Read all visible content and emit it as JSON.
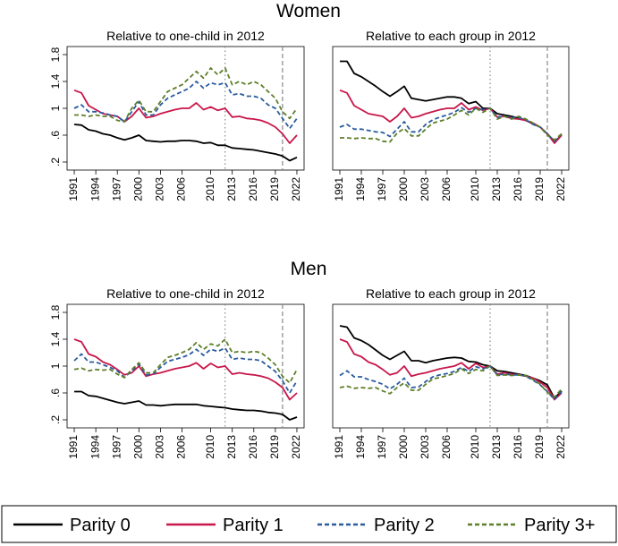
{
  "headings": [
    "Women",
    "Men"
  ],
  "chart_data": [
    {
      "type": "line",
      "title": "Relative to one-child in 2012",
      "x": [
        1991,
        1992,
        1993,
        1994,
        1995,
        1996,
        1997,
        1998,
        1999,
        2000,
        2001,
        2002,
        2003,
        2004,
        2005,
        2006,
        2007,
        2008,
        2009,
        2010,
        2011,
        2012,
        2013,
        2014,
        2015,
        2016,
        2017,
        2018,
        2019,
        2020,
        2021,
        2022
      ],
      "xlim": [
        1990,
        2023
      ],
      "xticks": [
        1991,
        1994,
        1997,
        2000,
        2003,
        2006,
        2010,
        2013,
        2016,
        2019,
        2022
      ],
      "ylim": [
        0.08,
        1.92
      ],
      "yticks": [
        {
          "value": 0.2,
          "label": ".2"
        },
        {
          "value": 0.6,
          "label": ".6"
        },
        1,
        {
          "value": 1.4,
          "label": "1.4"
        },
        {
          "value": 1.8,
          "label": "1.8"
        }
      ],
      "vlines": [
        {
          "x": 2012,
          "style": "dotted"
        },
        {
          "x": 2020,
          "style": "dashed"
        }
      ],
      "series": [
        {
          "name": "Parity 0",
          "color": "#000000",
          "dash": "solid",
          "values": [
            0.76,
            0.75,
            0.68,
            0.66,
            0.62,
            0.6,
            0.56,
            0.53,
            0.56,
            0.6,
            0.52,
            0.51,
            0.5,
            0.51,
            0.51,
            0.52,
            0.52,
            0.51,
            0.48,
            0.49,
            0.45,
            0.45,
            0.41,
            0.4,
            0.39,
            0.38,
            0.36,
            0.34,
            0.32,
            0.29,
            0.22,
            0.27
          ]
        },
        {
          "name": "Parity 1",
          "color": "#c8174a",
          "dash": "solid",
          "values": [
            1.27,
            1.23,
            1.04,
            0.98,
            0.92,
            0.9,
            0.88,
            0.8,
            0.88,
            1.0,
            0.86,
            0.88,
            0.92,
            0.95,
            0.98,
            1.0,
            1.0,
            1.08,
            0.98,
            1.02,
            0.97,
            1.0,
            0.87,
            0.88,
            0.85,
            0.84,
            0.82,
            0.78,
            0.72,
            0.62,
            0.48,
            0.6
          ]
        },
        {
          "name": "Parity 2",
          "color": "#2a5c9e",
          "dash": "dashed",
          "values": [
            1.0,
            1.05,
            0.95,
            0.95,
            0.93,
            0.9,
            0.88,
            0.8,
            0.95,
            1.1,
            0.9,
            0.9,
            1.05,
            1.15,
            1.2,
            1.25,
            1.3,
            1.4,
            1.3,
            1.38,
            1.35,
            1.38,
            1.2,
            1.22,
            1.18,
            1.18,
            1.15,
            1.05,
            1.0,
            0.85,
            0.7,
            0.85
          ]
        },
        {
          "name": "Parity 3+",
          "color": "#5e7f2a",
          "dash": "dashed",
          "values": [
            0.9,
            0.9,
            0.88,
            0.9,
            0.88,
            0.88,
            0.82,
            0.8,
            1.0,
            1.12,
            0.95,
            0.95,
            1.1,
            1.25,
            1.3,
            1.35,
            1.45,
            1.55,
            1.45,
            1.6,
            1.5,
            1.6,
            1.35,
            1.4,
            1.35,
            1.4,
            1.35,
            1.25,
            1.15,
            0.95,
            0.85,
            1.0
          ]
        }
      ]
    },
    {
      "type": "line",
      "title": "Relative to each group in 2012",
      "x": [
        1991,
        1992,
        1993,
        1994,
        1995,
        1996,
        1997,
        1998,
        1999,
        2000,
        2001,
        2002,
        2003,
        2004,
        2005,
        2006,
        2007,
        2008,
        2009,
        2010,
        2011,
        2012,
        2013,
        2014,
        2015,
        2016,
        2017,
        2018,
        2019,
        2020,
        2021,
        2022
      ],
      "xlim": [
        1990,
        2023
      ],
      "xticks": [
        1991,
        1994,
        1997,
        2000,
        2003,
        2006,
        2010,
        2013,
        2016,
        2019,
        2022
      ],
      "ylim": [
        0.08,
        1.92
      ],
      "vlines": [
        {
          "x": 2012,
          "style": "dotted"
        },
        {
          "x": 2020,
          "style": "dashed"
        }
      ],
      "series": [
        {
          "name": "Parity 0",
          "color": "#000000",
          "dash": "solid",
          "values": [
            1.7,
            1.7,
            1.52,
            1.47,
            1.4,
            1.33,
            1.25,
            1.18,
            1.25,
            1.33,
            1.15,
            1.13,
            1.11,
            1.13,
            1.15,
            1.17,
            1.17,
            1.15,
            1.07,
            1.1,
            1.0,
            1.0,
            0.92,
            0.9,
            0.88,
            0.85,
            0.82,
            0.77,
            0.72,
            0.62,
            0.5,
            0.6
          ]
        },
        {
          "name": "Parity 1",
          "color": "#c8174a",
          "dash": "solid",
          "values": [
            1.27,
            1.23,
            1.04,
            0.98,
            0.92,
            0.9,
            0.88,
            0.8,
            0.88,
            1.0,
            0.86,
            0.88,
            0.92,
            0.95,
            0.98,
            1.0,
            1.0,
            1.08,
            0.98,
            1.02,
            0.97,
            1.0,
            0.87,
            0.88,
            0.85,
            0.84,
            0.82,
            0.78,
            0.72,
            0.62,
            0.48,
            0.6
          ]
        },
        {
          "name": "Parity 2",
          "color": "#2a5c9e",
          "dash": "dashed",
          "values": [
            0.72,
            0.76,
            0.69,
            0.69,
            0.67,
            0.65,
            0.64,
            0.58,
            0.69,
            0.8,
            0.65,
            0.65,
            0.76,
            0.83,
            0.87,
            0.9,
            0.94,
            1.01,
            0.94,
            1.0,
            0.98,
            1.0,
            0.87,
            0.88,
            0.86,
            0.86,
            0.83,
            0.76,
            0.72,
            0.62,
            0.51,
            0.62
          ]
        },
        {
          "name": "Parity 3+",
          "color": "#5e7f2a",
          "dash": "dashed",
          "values": [
            0.56,
            0.56,
            0.55,
            0.56,
            0.55,
            0.55,
            0.51,
            0.5,
            0.63,
            0.7,
            0.59,
            0.59,
            0.69,
            0.78,
            0.81,
            0.84,
            0.9,
            0.97,
            0.9,
            1.0,
            0.94,
            1.0,
            0.84,
            0.88,
            0.84,
            0.88,
            0.84,
            0.78,
            0.72,
            0.6,
            0.53,
            0.62
          ]
        }
      ]
    },
    {
      "type": "line",
      "title": "Relative to one-child in 2012",
      "x": [
        1991,
        1992,
        1993,
        1994,
        1995,
        1996,
        1997,
        1998,
        1999,
        2000,
        2001,
        2002,
        2003,
        2004,
        2005,
        2006,
        2007,
        2008,
        2009,
        2010,
        2011,
        2012,
        2013,
        2014,
        2015,
        2016,
        2017,
        2018,
        2019,
        2020,
        2021,
        2022
      ],
      "xlim": [
        1990,
        2023
      ],
      "xticks": [
        1991,
        1994,
        1997,
        2000,
        2003,
        2006,
        2010,
        2013,
        2016,
        2019,
        2022
      ],
      "ylim": [
        0.08,
        1.92
      ],
      "yticks": [
        {
          "value": 0.2,
          "label": ".2"
        },
        {
          "value": 0.6,
          "label": ".6"
        },
        1,
        {
          "value": 1.4,
          "label": "1.4"
        },
        {
          "value": 1.8,
          "label": "1.8"
        }
      ],
      "vlines": [
        {
          "x": 2012,
          "style": "dotted"
        },
        {
          "x": 2020,
          "style": "dashed"
        }
      ],
      "series": [
        {
          "name": "Parity 0",
          "color": "#000000",
          "dash": "solid",
          "values": [
            0.62,
            0.62,
            0.56,
            0.55,
            0.52,
            0.49,
            0.46,
            0.44,
            0.46,
            0.48,
            0.42,
            0.42,
            0.41,
            0.42,
            0.43,
            0.43,
            0.43,
            0.43,
            0.41,
            0.4,
            0.39,
            0.38,
            0.36,
            0.35,
            0.34,
            0.34,
            0.33,
            0.31,
            0.3,
            0.28,
            0.2,
            0.24
          ]
        },
        {
          "name": "Parity 1",
          "color": "#c8174a",
          "dash": "solid",
          "values": [
            1.4,
            1.36,
            1.18,
            1.14,
            1.06,
            1.02,
            0.95,
            0.87,
            0.9,
            1.0,
            0.85,
            0.88,
            0.9,
            0.93,
            0.96,
            0.98,
            1.0,
            1.05,
            0.96,
            1.04,
            0.98,
            1.0,
            0.88,
            0.9,
            0.88,
            0.87,
            0.85,
            0.82,
            0.76,
            0.68,
            0.5,
            0.6
          ]
        },
        {
          "name": "Parity 2",
          "color": "#2a5c9e",
          "dash": "dashed",
          "values": [
            1.08,
            1.18,
            1.06,
            1.06,
            1.02,
            0.98,
            0.93,
            0.83,
            0.93,
            1.03,
            0.87,
            0.88,
            0.98,
            1.07,
            1.1,
            1.13,
            1.17,
            1.25,
            1.16,
            1.25,
            1.22,
            1.27,
            1.1,
            1.12,
            1.1,
            1.1,
            1.08,
            1.0,
            0.92,
            0.78,
            0.6,
            0.78
          ]
        },
        {
          "name": "Parity 3+",
          "color": "#5e7f2a",
          "dash": "dashed",
          "values": [
            0.95,
            0.97,
            0.93,
            0.95,
            0.94,
            0.95,
            0.88,
            0.83,
            0.95,
            1.05,
            0.9,
            0.9,
            1.02,
            1.13,
            1.16,
            1.2,
            1.25,
            1.35,
            1.25,
            1.33,
            1.3,
            1.4,
            1.2,
            1.22,
            1.2,
            1.22,
            1.2,
            1.12,
            1.02,
            0.85,
            0.75,
            0.95
          ]
        }
      ]
    },
    {
      "type": "line",
      "title": "Relative to each group in 2012",
      "x": [
        1991,
        1992,
        1993,
        1994,
        1995,
        1996,
        1997,
        1998,
        1999,
        2000,
        2001,
        2002,
        2003,
        2004,
        2005,
        2006,
        2007,
        2008,
        2009,
        2010,
        2011,
        2012,
        2013,
        2014,
        2015,
        2016,
        2017,
        2018,
        2019,
        2020,
        2021,
        2022
      ],
      "xlim": [
        1990,
        2023
      ],
      "xticks": [
        1991,
        1994,
        1997,
        2000,
        2003,
        2006,
        2010,
        2013,
        2016,
        2019,
        2022
      ],
      "ylim": [
        0.08,
        1.92
      ],
      "vlines": [
        {
          "x": 2012,
          "style": "dotted"
        },
        {
          "x": 2020,
          "style": "dashed"
        }
      ],
      "series": [
        {
          "name": "Parity 0",
          "color": "#000000",
          "dash": "solid",
          "values": [
            1.6,
            1.58,
            1.42,
            1.38,
            1.32,
            1.24,
            1.16,
            1.1,
            1.16,
            1.22,
            1.08,
            1.08,
            1.05,
            1.08,
            1.1,
            1.12,
            1.13,
            1.12,
            1.07,
            1.06,
            1.02,
            1.0,
            0.93,
            0.92,
            0.9,
            0.88,
            0.86,
            0.82,
            0.78,
            0.72,
            0.52,
            0.63
          ]
        },
        {
          "name": "Parity 1",
          "color": "#c8174a",
          "dash": "solid",
          "values": [
            1.4,
            1.36,
            1.18,
            1.14,
            1.06,
            1.02,
            0.95,
            0.87,
            0.9,
            1.0,
            0.85,
            0.88,
            0.9,
            0.93,
            0.96,
            0.98,
            1.0,
            1.05,
            0.96,
            1.04,
            0.98,
            1.0,
            0.88,
            0.9,
            0.88,
            0.87,
            0.85,
            0.82,
            0.76,
            0.68,
            0.5,
            0.6
          ]
        },
        {
          "name": "Parity 2",
          "color": "#2a5c9e",
          "dash": "dashed",
          "values": [
            0.86,
            0.93,
            0.84,
            0.84,
            0.8,
            0.77,
            0.73,
            0.66,
            0.73,
            0.82,
            0.68,
            0.69,
            0.77,
            0.84,
            0.87,
            0.89,
            0.92,
            0.98,
            0.92,
            0.99,
            0.96,
            1.0,
            0.87,
            0.88,
            0.87,
            0.87,
            0.85,
            0.79,
            0.72,
            0.62,
            0.5,
            0.62
          ]
        },
        {
          "name": "Parity 3+",
          "color": "#5e7f2a",
          "dash": "dashed",
          "values": [
            0.68,
            0.7,
            0.67,
            0.68,
            0.67,
            0.68,
            0.63,
            0.59,
            0.68,
            0.75,
            0.64,
            0.64,
            0.73,
            0.81,
            0.83,
            0.86,
            0.89,
            0.96,
            0.89,
            0.95,
            0.93,
            1.0,
            0.86,
            0.87,
            0.86,
            0.87,
            0.86,
            0.8,
            0.73,
            0.61,
            0.54,
            0.66
          ]
        }
      ]
    }
  ]
}
